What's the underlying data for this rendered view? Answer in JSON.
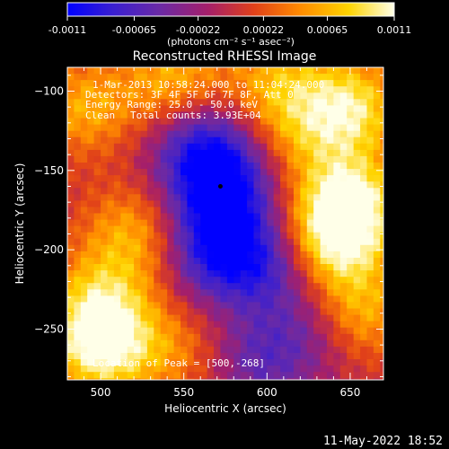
{
  "window": {
    "timestamp": "11-May-2022 18:52"
  },
  "colorbar": {
    "ticks": [
      "-0.0011",
      "-0.00065",
      "-0.00022",
      "0.00022",
      "0.00065",
      "0.0011"
    ],
    "tick_values": [
      -0.0011,
      -0.00065,
      -0.00022,
      0.00022,
      0.00065,
      0.0011
    ],
    "units": "(photons cm⁻² s⁻¹ asec⁻²)",
    "range": [
      -0.0011,
      0.0011
    ],
    "colors": [
      "#0000ff",
      "#3a1fd0",
      "#6a2aa6",
      "#a51f6a",
      "#e0401a",
      "#ff8a00",
      "#ffd400",
      "#ffffe8"
    ]
  },
  "plot": {
    "title": "Reconstructed RHESSI Image",
    "xlabel": "Heliocentric X (arcsec)",
    "ylabel": "Heliocentric Y (arcsec)",
    "xlim": [
      480,
      670
    ],
    "ylim": [
      -282,
      -85
    ],
    "xticks": [
      "500",
      "550",
      "600",
      "650"
    ],
    "xtick_values": [
      500,
      550,
      600,
      650
    ],
    "yticks": [
      "-100",
      "-150",
      "-200",
      "-250"
    ],
    "ytick_values": [
      -100,
      -150,
      -200,
      -250
    ]
  },
  "annotations": {
    "time_range": "1-Mar-2013 10:58:24.000 to 11:04:24.000",
    "detectors": "Detectors: 3F 4F 5F 6F 7F 8F, Att 0",
    "energy": "Energy Range: 25.0 - 50.0 keV",
    "algorithm": "Clean",
    "total_counts": "Total counts: 3.93E+04",
    "peak": "Location of Peak = [500,-268]"
  },
  "chart_data": {
    "type": "heatmap",
    "title": "Reconstructed RHESSI Image",
    "xlabel": "Heliocentric X (arcsec)",
    "ylabel": "Heliocentric Y (arcsec)",
    "xlim": [
      480,
      670
    ],
    "ylim": [
      -282,
      -85
    ],
    "color_range": [
      -0.0011,
      0.0011
    ],
    "peak_location": [
      500,
      -268
    ],
    "peak_value": 0.0011,
    "grid_spacing_arcsec": 4,
    "features": [
      {
        "x": 572,
        "y": -160,
        "value": -0.0011
      },
      {
        "x": 570,
        "y": -200,
        "value": -0.0009
      },
      {
        "x": 560,
        "y": -130,
        "value": -0.0007
      },
      {
        "x": 650,
        "y": -170,
        "value": 0.001
      },
      {
        "x": 650,
        "y": -110,
        "value": 0.0009
      },
      {
        "x": 640,
        "y": -195,
        "value": 0.0009
      },
      {
        "x": 655,
        "y": -240,
        "value": 0.0007
      },
      {
        "x": 520,
        "y": -190,
        "value": 0.0006
      },
      {
        "x": 500,
        "y": -260,
        "value": 0.0011
      },
      {
        "x": 500,
        "y": -230,
        "value": 0.0006
      },
      {
        "x": 490,
        "y": -110,
        "value": 0.0006
      },
      {
        "x": 545,
        "y": -95,
        "value": 0.0007
      },
      {
        "x": 605,
        "y": -95,
        "value": 0.0006
      },
      {
        "x": 620,
        "y": -130,
        "value": 0.0004
      },
      {
        "x": 545,
        "y": -265,
        "value": 0.0004
      },
      {
        "x": 630,
        "y": -250,
        "value": -0.0004
      },
      {
        "x": 600,
        "y": -210,
        "value": -0.0006
      },
      {
        "x": 595,
        "y": -270,
        "value": -0.0005
      }
    ]
  }
}
